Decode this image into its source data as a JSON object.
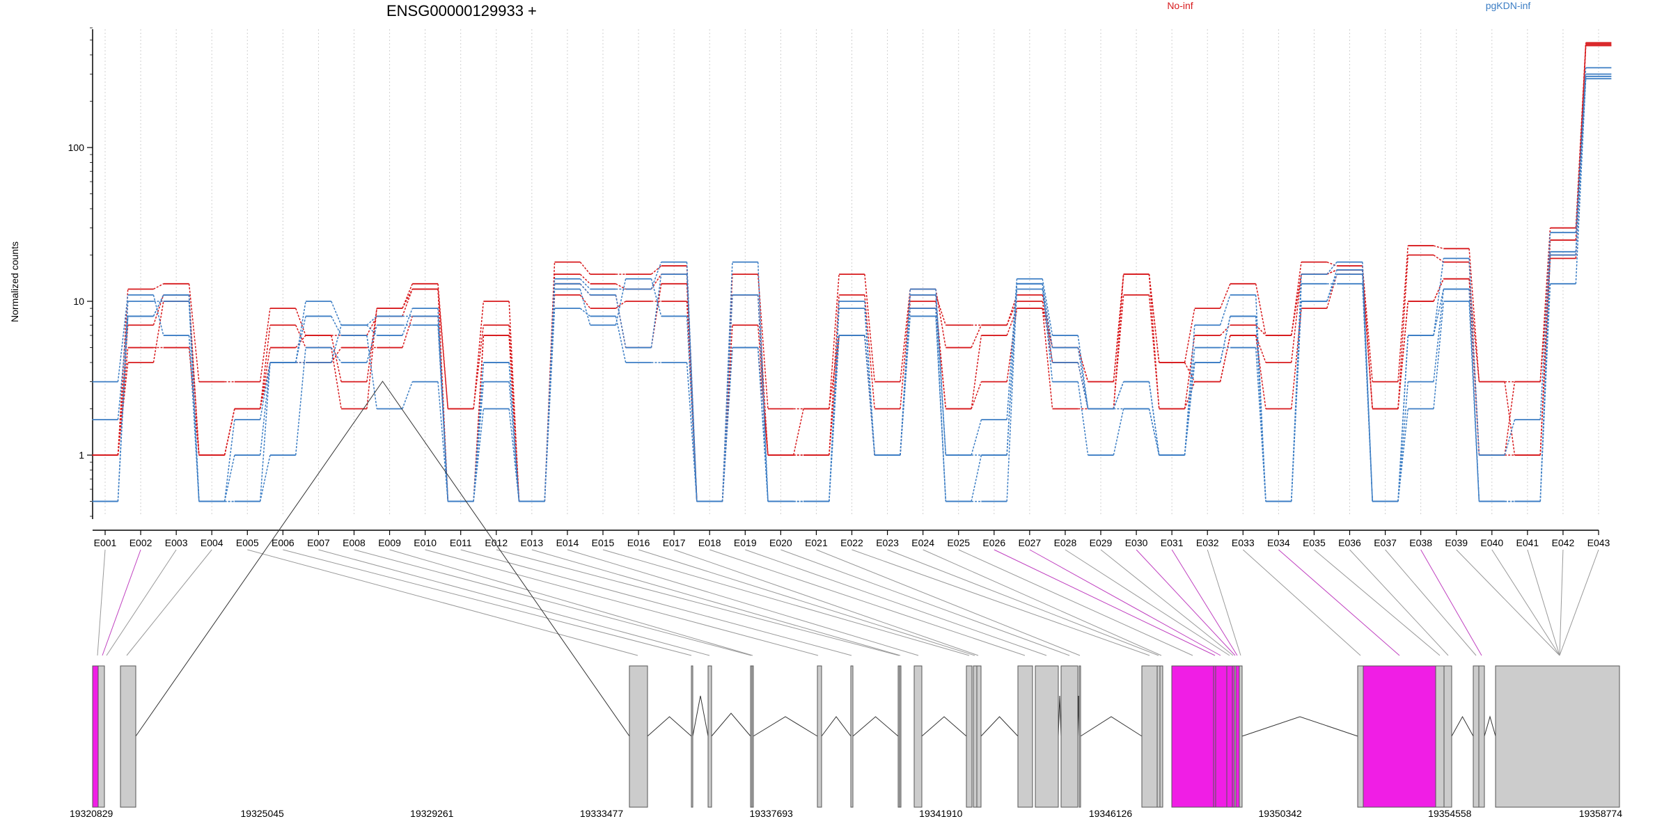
{
  "chart_data": {
    "type": "line",
    "title": "ENSG00000129933 +",
    "ylabel": "Normalized counts",
    "yscale": "log",
    "yticks": [
      "1",
      "10",
      "100"
    ],
    "ylim": [
      0.4,
      600
    ],
    "grid": "vertical dotted per exon",
    "legend": [
      {
        "name": "No-inf",
        "color": "#d7191c"
      },
      {
        "name": "pgKDN-inf",
        "color": "#3b7dc4"
      }
    ],
    "categories": [
      "E001",
      "E002",
      "E003",
      "E004",
      "E005",
      "E006",
      "E007",
      "E008",
      "E009",
      "E010",
      "E011",
      "E012",
      "E013",
      "E014",
      "E015",
      "E016",
      "E017",
      "E018",
      "E019",
      "E020",
      "E021",
      "E022",
      "E023",
      "E024",
      "E025",
      "E026",
      "E027",
      "E028",
      "E029",
      "E030",
      "E031",
      "E032",
      "E033",
      "E034",
      "E035",
      "E036",
      "E037",
      "E038",
      "E039",
      "E040",
      "E041",
      "E042",
      "E043"
    ],
    "series": [
      {
        "group": "No-inf",
        "color": "#d7191c",
        "values": [
          1.0,
          12,
          13,
          3,
          3,
          9,
          6,
          3,
          9,
          13,
          2,
          10,
          0.5,
          18,
          15,
          15,
          17,
          0.5,
          15,
          2,
          2,
          15,
          3,
          12,
          5,
          7,
          11,
          5,
          3,
          15,
          4,
          9,
          13,
          6,
          18,
          17,
          3,
          23,
          22,
          3,
          3,
          30,
          480
        ]
      },
      {
        "group": "No-inf",
        "color": "#d7191c",
        "values": [
          1.0,
          7,
          11,
          1.0,
          2,
          7,
          5,
          2,
          9,
          12,
          2,
          7,
          0.5,
          15,
          13,
          12,
          15,
          0.5,
          11,
          1.0,
          1.0,
          11,
          2,
          11,
          7,
          7,
          10,
          4,
          2,
          11,
          2,
          6,
          7,
          6,
          15,
          16,
          2,
          20,
          18,
          1.0,
          1.0,
          25,
          460
        ]
      },
      {
        "group": "No-inf",
        "color": "#d7191c",
        "values": [
          1.0,
          5,
          5,
          1.0,
          2,
          5,
          6,
          6,
          8,
          12,
          0.5,
          6,
          0.5,
          13,
          11,
          5,
          13,
          0.5,
          7,
          1.0,
          1.0,
          6,
          1.0,
          10,
          2,
          3,
          9,
          2,
          2,
          15,
          4,
          3,
          6,
          2,
          9,
          15,
          2,
          10,
          14,
          1.0,
          3,
          20,
          470
        ]
      },
      {
        "group": "No-inf",
        "color": "#d7191c",
        "values": [
          1.0,
          4,
          10,
          1.0,
          2,
          4,
          4,
          5,
          5,
          8,
          0.5,
          6,
          0.5,
          11,
          9,
          10,
          10,
          0.5,
          5,
          1.0,
          2,
          6,
          1.0,
          9,
          2,
          6,
          9,
          5,
          3,
          15,
          2,
          3,
          6,
          4,
          15,
          16,
          2,
          10,
          14,
          3,
          1.0,
          19,
          460
        ]
      },
      {
        "group": "pgKDN-inf",
        "color": "#3b7dc4",
        "values": [
          3,
          11,
          6,
          0.5,
          1.0,
          4,
          10,
          7,
          6,
          9,
          0.5,
          4,
          0.5,
          14,
          12,
          12,
          18,
          0.5,
          18,
          0.5,
          0.5,
          9,
          1.0,
          12,
          1.0,
          1.7,
          14,
          6,
          2,
          3,
          1.0,
          7,
          11,
          0.5,
          15,
          18,
          0.5,
          6,
          19,
          1.0,
          1.7,
          28,
          330
        ]
      },
      {
        "group": "pgKDN-inf",
        "color": "#3b7dc4",
        "values": [
          1.7,
          8,
          11,
          0.5,
          0.5,
          4,
          8,
          6,
          2,
          3,
          0.5,
          3,
          0.5,
          13,
          11,
          5,
          15,
          0.5,
          11,
          0.5,
          0.5,
          6,
          1.0,
          11,
          1.0,
          1.0,
          13,
          5,
          2,
          2,
          1.0,
          4,
          8,
          0.5,
          13,
          13,
          0.5,
          3,
          12,
          0.5,
          0.5,
          21,
          300
        ]
      },
      {
        "group": "pgKDN-inf",
        "color": "#3b7dc4",
        "values": [
          0.5,
          10,
          10,
          0.5,
          1.7,
          4,
          4,
          7,
          8,
          8,
          0.5,
          2,
          0.5,
          9,
          8,
          4,
          4,
          0.5,
          5,
          0.5,
          0.5,
          6,
          1.0,
          8,
          0.5,
          1.0,
          13,
          3,
          1.0,
          2,
          1.0,
          4,
          8,
          0.5,
          10,
          16,
          0.5,
          2,
          10,
          0.5,
          0.5,
          13,
          290
        ]
      },
      {
        "group": "pgKDN-inf",
        "color": "#3b7dc4",
        "values": [
          0.5,
          8,
          11,
          0.5,
          0.5,
          1.0,
          5,
          4,
          7,
          7,
          0.5,
          4,
          0.5,
          12,
          7,
          14,
          8,
          0.5,
          5,
          0.5,
          0.5,
          10,
          1.0,
          9,
          0.5,
          0.5,
          12,
          4,
          2,
          3,
          1.0,
          5,
          5,
          0.5,
          10,
          15,
          0.5,
          6,
          12,
          0.5,
          0.5,
          20,
          280
        ]
      }
    ],
    "gene_model": {
      "coordinate_labels": [
        "19320829",
        "19325045",
        "19329261",
        "19333477",
        "19337693",
        "19341910",
        "19346126",
        "19350342",
        "19354558",
        "19358774"
      ],
      "highlighted_exons": [
        "E001",
        "E002",
        "E026",
        "E027",
        "E028",
        "E029",
        "E030",
        "E031",
        "E032",
        "E033",
        "E034",
        "E038"
      ]
    }
  }
}
